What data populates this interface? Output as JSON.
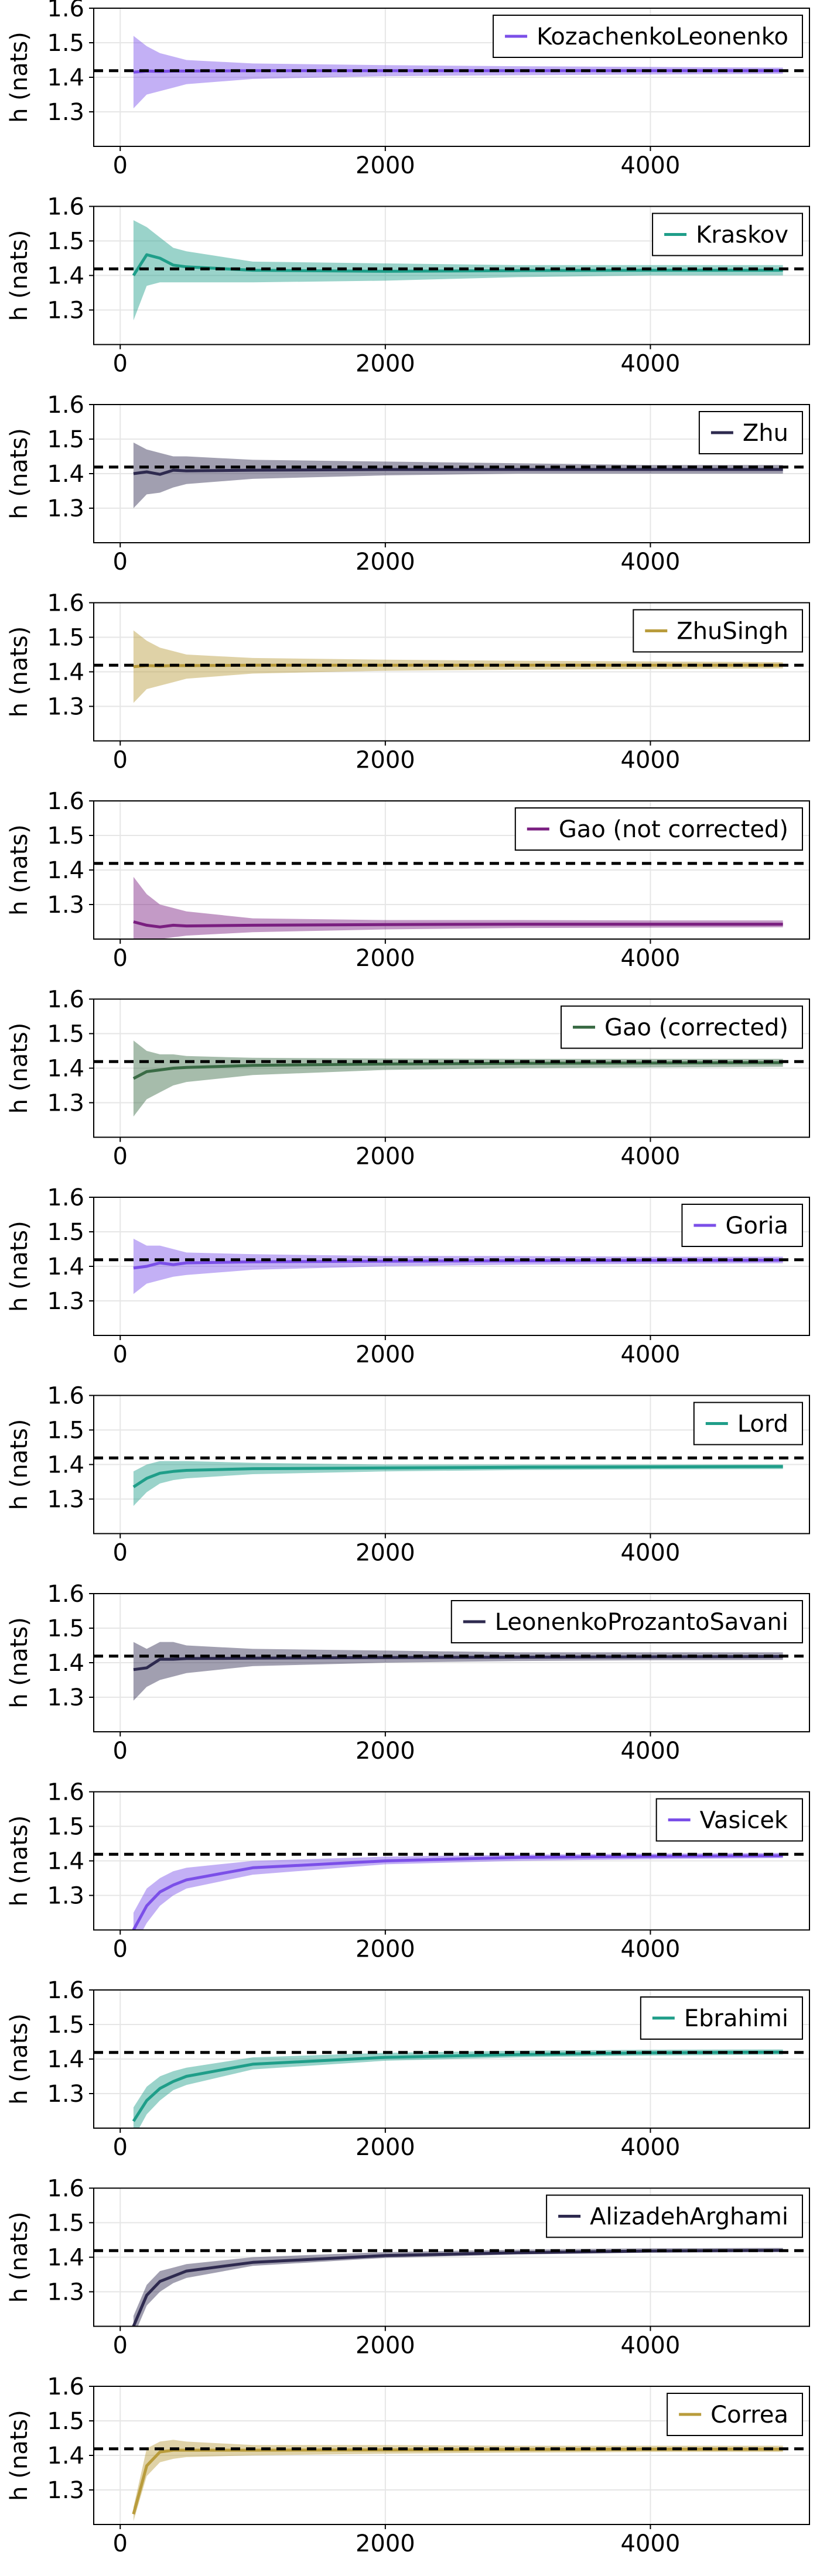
{
  "chart_data": [
    {
      "type": "line",
      "ylabel": "h (nats)",
      "xlabel": "",
      "title": "",
      "xlim": [
        -200,
        5200
      ],
      "ylim": [
        1.2,
        1.6
      ],
      "xticks": [
        0,
        2000,
        4000
      ],
      "yticks": [
        1.3,
        1.4,
        1.5,
        1.6
      ],
      "grid": true,
      "legend_position": "top-right",
      "reference_line": 1.419,
      "series": [
        {
          "name": "KozachenkoLeonenko",
          "color": "#7b4fe8",
          "x": [
            100,
            200,
            300,
            400,
            500,
            1000,
            2000,
            3000,
            4000,
            5000
          ],
          "y": [
            1.415,
            1.418,
            1.417,
            1.418,
            1.418,
            1.419,
            1.419,
            1.419,
            1.419,
            1.419
          ],
          "lower": [
            1.31,
            1.35,
            1.36,
            1.37,
            1.38,
            1.395,
            1.403,
            1.406,
            1.408,
            1.41
          ],
          "upper": [
            1.52,
            1.49,
            1.47,
            1.46,
            1.45,
            1.44,
            1.435,
            1.432,
            1.43,
            1.428
          ]
        }
      ]
    },
    {
      "type": "line",
      "ylabel": "h (nats)",
      "xlabel": "",
      "title": "",
      "xlim": [
        -200,
        5200
      ],
      "ylim": [
        1.2,
        1.6
      ],
      "xticks": [
        0,
        2000,
        4000
      ],
      "yticks": [
        1.3,
        1.4,
        1.5,
        1.6
      ],
      "grid": true,
      "legend_position": "top-right",
      "reference_line": 1.419,
      "series": [
        {
          "name": "Kraskov",
          "color": "#1f9e89",
          "x": [
            100,
            200,
            300,
            400,
            500,
            1000,
            2000,
            3000,
            4000,
            5000
          ],
          "y": [
            1.4,
            1.46,
            1.45,
            1.43,
            1.425,
            1.415,
            1.412,
            1.414,
            1.415,
            1.415
          ],
          "lower": [
            1.27,
            1.37,
            1.38,
            1.38,
            1.38,
            1.38,
            1.385,
            1.395,
            1.4,
            1.4
          ],
          "upper": [
            1.56,
            1.54,
            1.51,
            1.48,
            1.47,
            1.44,
            1.435,
            1.43,
            1.43,
            1.43
          ]
        }
      ]
    },
    {
      "type": "line",
      "ylabel": "h (nats)",
      "xlabel": "",
      "title": "",
      "xlim": [
        -200,
        5200
      ],
      "ylim": [
        1.2,
        1.6
      ],
      "xticks": [
        0,
        2000,
        4000
      ],
      "yticks": [
        1.3,
        1.4,
        1.5,
        1.6
      ],
      "grid": true,
      "legend_position": "top-right",
      "reference_line": 1.419,
      "series": [
        {
          "name": "Zhu",
          "color": "#2e2a4f",
          "x": [
            100,
            200,
            300,
            400,
            500,
            1000,
            2000,
            3000,
            4000,
            5000
          ],
          "y": [
            1.4,
            1.405,
            1.398,
            1.41,
            1.408,
            1.41,
            1.412,
            1.412,
            1.412,
            1.412
          ],
          "lower": [
            1.3,
            1.34,
            1.345,
            1.36,
            1.37,
            1.385,
            1.395,
            1.4,
            1.4,
            1.4
          ],
          "upper": [
            1.49,
            1.47,
            1.46,
            1.45,
            1.45,
            1.44,
            1.435,
            1.43,
            1.425,
            1.425
          ]
        }
      ]
    },
    {
      "type": "line",
      "ylabel": "h (nats)",
      "xlabel": "",
      "title": "",
      "xlim": [
        -200,
        5200
      ],
      "ylim": [
        1.2,
        1.6
      ],
      "xticks": [
        0,
        2000,
        4000
      ],
      "yticks": [
        1.3,
        1.4,
        1.5,
        1.6
      ],
      "grid": true,
      "legend_position": "top-right",
      "reference_line": 1.419,
      "series": [
        {
          "name": "ZhuSingh",
          "color": "#b99c3c",
          "x": [
            100,
            200,
            300,
            400,
            500,
            1000,
            2000,
            3000,
            4000,
            5000
          ],
          "y": [
            1.415,
            1.418,
            1.417,
            1.418,
            1.418,
            1.419,
            1.419,
            1.419,
            1.419,
            1.419
          ],
          "lower": [
            1.31,
            1.35,
            1.36,
            1.37,
            1.38,
            1.395,
            1.403,
            1.406,
            1.408,
            1.41
          ],
          "upper": [
            1.52,
            1.49,
            1.47,
            1.46,
            1.45,
            1.44,
            1.435,
            1.432,
            1.43,
            1.428
          ]
        }
      ]
    },
    {
      "type": "line",
      "ylabel": "h (nats)",
      "xlabel": "",
      "title": "",
      "xlim": [
        -200,
        5200
      ],
      "ylim": [
        1.2,
        1.6
      ],
      "xticks": [
        0,
        2000,
        4000
      ],
      "yticks": [
        1.3,
        1.4,
        1.5,
        1.6
      ],
      "grid": true,
      "legend_position": "top-right",
      "reference_line": 1.419,
      "series": [
        {
          "name": "Gao (not corrected)",
          "color": "#7a1f80",
          "x": [
            100,
            200,
            300,
            400,
            500,
            1000,
            2000,
            3000,
            4000,
            5000
          ],
          "y": [
            1.25,
            1.24,
            1.235,
            1.24,
            1.238,
            1.24,
            1.242,
            1.243,
            1.243,
            1.243
          ],
          "lower": [
            1.18,
            1.19,
            1.2,
            1.205,
            1.21,
            1.22,
            1.228,
            1.232,
            1.233,
            1.234
          ],
          "upper": [
            1.38,
            1.33,
            1.3,
            1.29,
            1.28,
            1.26,
            1.255,
            1.255,
            1.254,
            1.254
          ]
        }
      ]
    },
    {
      "type": "line",
      "ylabel": "h (nats)",
      "xlabel": "",
      "title": "",
      "xlim": [
        -200,
        5200
      ],
      "ylim": [
        1.2,
        1.6
      ],
      "xticks": [
        0,
        2000,
        4000
      ],
      "yticks": [
        1.3,
        1.4,
        1.5,
        1.6
      ],
      "grid": true,
      "legend_position": "top-right",
      "reference_line": 1.419,
      "series": [
        {
          "name": "Gao (corrected)",
          "color": "#3a6b45",
          "x": [
            100,
            200,
            300,
            400,
            500,
            1000,
            2000,
            3000,
            4000,
            5000
          ],
          "y": [
            1.37,
            1.39,
            1.395,
            1.4,
            1.402,
            1.408,
            1.412,
            1.414,
            1.415,
            1.416
          ],
          "lower": [
            1.26,
            1.31,
            1.33,
            1.35,
            1.36,
            1.38,
            1.395,
            1.4,
            1.402,
            1.404
          ],
          "upper": [
            1.48,
            1.45,
            1.44,
            1.44,
            1.435,
            1.43,
            1.428,
            1.427,
            1.427,
            1.427
          ]
        }
      ]
    },
    {
      "type": "line",
      "ylabel": "h (nats)",
      "xlabel": "",
      "title": "",
      "xlim": [
        -200,
        5200
      ],
      "ylim": [
        1.2,
        1.6
      ],
      "xticks": [
        0,
        2000,
        4000
      ],
      "yticks": [
        1.3,
        1.4,
        1.5,
        1.6
      ],
      "grid": true,
      "legend_position": "top-right",
      "reference_line": 1.419,
      "series": [
        {
          "name": "Goria",
          "color": "#7b4fe8",
          "x": [
            100,
            200,
            300,
            400,
            500,
            1000,
            2000,
            3000,
            4000,
            5000
          ],
          "y": [
            1.395,
            1.4,
            1.41,
            1.405,
            1.41,
            1.413,
            1.415,
            1.416,
            1.417,
            1.418
          ],
          "lower": [
            1.32,
            1.35,
            1.36,
            1.37,
            1.375,
            1.39,
            1.4,
            1.405,
            1.407,
            1.409
          ],
          "upper": [
            1.48,
            1.46,
            1.46,
            1.45,
            1.44,
            1.435,
            1.43,
            1.43,
            1.428,
            1.428
          ]
        }
      ]
    },
    {
      "type": "line",
      "ylabel": "h (nats)",
      "xlabel": "",
      "title": "",
      "xlim": [
        -200,
        5200
      ],
      "ylim": [
        1.2,
        1.6
      ],
      "xticks": [
        0,
        2000,
        4000
      ],
      "yticks": [
        1.3,
        1.4,
        1.5,
        1.6
      ],
      "grid": true,
      "legend_position": "top-right",
      "reference_line": 1.419,
      "series": [
        {
          "name": "Lord",
          "color": "#1f9e89",
          "x": [
            100,
            200,
            300,
            400,
            500,
            1000,
            2000,
            3000,
            4000,
            5000
          ],
          "y": [
            1.335,
            1.36,
            1.375,
            1.38,
            1.383,
            1.388,
            1.39,
            1.392,
            1.393,
            1.394
          ],
          "lower": [
            1.28,
            1.32,
            1.345,
            1.355,
            1.36,
            1.372,
            1.38,
            1.384,
            1.386,
            1.387
          ],
          "upper": [
            1.38,
            1.4,
            1.41,
            1.41,
            1.41,
            1.405,
            1.4,
            1.4,
            1.4,
            1.4
          ]
        }
      ]
    },
    {
      "type": "line",
      "ylabel": "h (nats)",
      "xlabel": "",
      "title": "",
      "xlim": [
        -200,
        5200
      ],
      "ylim": [
        1.2,
        1.6
      ],
      "xticks": [
        0,
        2000,
        4000
      ],
      "yticks": [
        1.3,
        1.4,
        1.5,
        1.6
      ],
      "grid": true,
      "legend_position": "top-right",
      "reference_line": 1.419,
      "series": [
        {
          "name": "LeonenkoProzantoSavani",
          "color": "#2e2a4f",
          "x": [
            100,
            200,
            300,
            400,
            500,
            1000,
            2000,
            3000,
            4000,
            5000
          ],
          "y": [
            1.38,
            1.385,
            1.41,
            1.41,
            1.412,
            1.413,
            1.415,
            1.416,
            1.417,
            1.418
          ],
          "lower": [
            1.29,
            1.33,
            1.35,
            1.36,
            1.37,
            1.39,
            1.4,
            1.405,
            1.407,
            1.408
          ],
          "upper": [
            1.46,
            1.44,
            1.46,
            1.46,
            1.45,
            1.44,
            1.435,
            1.43,
            1.43,
            1.43
          ]
        }
      ]
    },
    {
      "type": "line",
      "ylabel": "h (nats)",
      "xlabel": "",
      "title": "",
      "xlim": [
        -200,
        5200
      ],
      "ylim": [
        1.2,
        1.6
      ],
      "xticks": [
        0,
        2000,
        4000
      ],
      "yticks": [
        1.3,
        1.4,
        1.5,
        1.6
      ],
      "grid": true,
      "legend_position": "top-right",
      "reference_line": 1.419,
      "series": [
        {
          "name": "Vasicek",
          "color": "#7b4fe8",
          "x": [
            100,
            200,
            300,
            400,
            500,
            1000,
            2000,
            3000,
            4000,
            5000
          ],
          "y": [
            1.2,
            1.27,
            1.31,
            1.33,
            1.345,
            1.38,
            1.4,
            1.41,
            1.413,
            1.415
          ],
          "lower": [
            1.15,
            1.22,
            1.27,
            1.3,
            1.32,
            1.36,
            1.39,
            1.4,
            1.405,
            1.408
          ],
          "upper": [
            1.25,
            1.32,
            1.35,
            1.37,
            1.38,
            1.4,
            1.412,
            1.418,
            1.421,
            1.423
          ]
        }
      ]
    },
    {
      "type": "line",
      "ylabel": "h (nats)",
      "xlabel": "",
      "title": "",
      "xlim": [
        -200,
        5200
      ],
      "ylim": [
        1.2,
        1.6
      ],
      "xticks": [
        0,
        2000,
        4000
      ],
      "yticks": [
        1.3,
        1.4,
        1.5,
        1.6
      ],
      "grid": true,
      "legend_position": "top-right",
      "reference_line": 1.419,
      "series": [
        {
          "name": "Ebrahimi",
          "color": "#1f9e89",
          "x": [
            100,
            200,
            300,
            400,
            500,
            1000,
            2000,
            3000,
            4000,
            5000
          ],
          "y": [
            1.22,
            1.28,
            1.315,
            1.335,
            1.35,
            1.385,
            1.405,
            1.413,
            1.418,
            1.42
          ],
          "lower": [
            1.17,
            1.24,
            1.28,
            1.31,
            1.325,
            1.37,
            1.395,
            1.405,
            1.41,
            1.413
          ],
          "upper": [
            1.26,
            1.32,
            1.35,
            1.365,
            1.375,
            1.405,
            1.418,
            1.424,
            1.427,
            1.428
          ]
        }
      ]
    },
    {
      "type": "line",
      "ylabel": "h (nats)",
      "xlabel": "",
      "title": "",
      "xlim": [
        -200,
        5200
      ],
      "ylim": [
        1.2,
        1.6
      ],
      "xticks": [
        0,
        2000,
        4000
      ],
      "yticks": [
        1.3,
        1.4,
        1.5,
        1.6
      ],
      "grid": true,
      "legend_position": "top-right",
      "reference_line": 1.419,
      "series": [
        {
          "name": "AlizadehArghami",
          "color": "#2e2a4f",
          "x": [
            100,
            200,
            300,
            400,
            500,
            1000,
            2000,
            3000,
            4000,
            5000
          ],
          "y": [
            1.2,
            1.29,
            1.33,
            1.345,
            1.36,
            1.385,
            1.405,
            1.413,
            1.418,
            1.42
          ],
          "lower": [
            1.17,
            1.26,
            1.3,
            1.325,
            1.34,
            1.375,
            1.398,
            1.408,
            1.413,
            1.415
          ],
          "upper": [
            1.23,
            1.32,
            1.36,
            1.37,
            1.38,
            1.4,
            1.415,
            1.422,
            1.426,
            1.427
          ]
        }
      ]
    },
    {
      "type": "line",
      "ylabel": "h (nats)",
      "xlabel": "",
      "title": "",
      "xlim": [
        -200,
        5200
      ],
      "ylim": [
        1.2,
        1.6
      ],
      "xticks": [
        0,
        2000,
        4000
      ],
      "yticks": [
        1.3,
        1.4,
        1.5,
        1.6
      ],
      "grid": true,
      "legend_position": "top-right",
      "reference_line": 1.419,
      "series": [
        {
          "name": "Correa",
          "color": "#b99c3c",
          "x": [
            100,
            200,
            300,
            400,
            500,
            1000,
            2000,
            3000,
            4000,
            5000
          ],
          "y": [
            1.23,
            1.37,
            1.41,
            1.415,
            1.415,
            1.415,
            1.416,
            1.417,
            1.418,
            1.418
          ],
          "lower": [
            1.21,
            1.34,
            1.38,
            1.39,
            1.395,
            1.4,
            1.405,
            1.408,
            1.41,
            1.41
          ],
          "upper": [
            1.25,
            1.42,
            1.44,
            1.445,
            1.44,
            1.43,
            1.43,
            1.428,
            1.428,
            1.428
          ]
        }
      ]
    }
  ]
}
